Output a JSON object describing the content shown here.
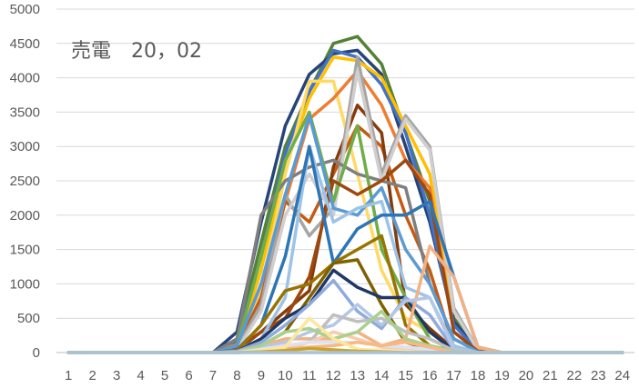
{
  "chart_data": {
    "type": "line",
    "title": "売電　20，02",
    "xlabel": "",
    "ylabel": "",
    "categories": [
      "1",
      "2",
      "3",
      "4",
      "5",
      "6",
      "7",
      "8",
      "9",
      "10",
      "11",
      "12",
      "13",
      "14",
      "15",
      "16",
      "17",
      "18",
      "19",
      "20",
      "21",
      "22",
      "23",
      "24"
    ],
    "ylim": [
      0,
      5000
    ],
    "yticks": [
      0,
      500,
      1000,
      1500,
      2000,
      2500,
      3000,
      3500,
      4000,
      4500,
      5000
    ],
    "grid": true,
    "legend": "none",
    "series": [
      {
        "color": "#548235",
        "values": [
          0,
          0,
          0,
          0,
          0,
          0,
          0,
          200,
          1600,
          3000,
          3800,
          4500,
          4600,
          4200,
          3200,
          2200,
          500,
          50,
          0,
          0,
          0,
          0,
          0,
          0
        ]
      },
      {
        "color": "#264478",
        "values": [
          0,
          0,
          0,
          0,
          0,
          0,
          0,
          300,
          1900,
          3300,
          4050,
          4350,
          4400,
          4050,
          3000,
          1900,
          450,
          40,
          0,
          0,
          0,
          0,
          0,
          0
        ]
      },
      {
        "color": "#4472C4",
        "values": [
          0,
          0,
          0,
          0,
          0,
          0,
          0,
          150,
          1400,
          2900,
          3800,
          4400,
          4300,
          3900,
          3200,
          2000,
          400,
          30,
          0,
          0,
          0,
          0,
          0,
          0
        ]
      },
      {
        "color": "#FFC000",
        "values": [
          0,
          0,
          0,
          0,
          0,
          0,
          0,
          100,
          1200,
          2700,
          3700,
          4300,
          4250,
          4000,
          3300,
          2600,
          600,
          60,
          0,
          0,
          0,
          0,
          0,
          0
        ]
      },
      {
        "color": "#FFD966",
        "values": [
          0,
          0,
          0,
          0,
          0,
          0,
          0,
          50,
          900,
          2600,
          3950,
          3950,
          2600,
          1200,
          500,
          300,
          50,
          0,
          0,
          0,
          0,
          0,
          0,
          0
        ]
      },
      {
        "color": "#ED7D31",
        "values": [
          0,
          0,
          0,
          0,
          0,
          0,
          0,
          120,
          1000,
          2200,
          3400,
          3700,
          4100,
          3600,
          2800,
          2400,
          300,
          20,
          0,
          0,
          0,
          0,
          0,
          0
        ]
      },
      {
        "color": "#C55A11",
        "values": [
          0,
          0,
          0,
          0,
          0,
          0,
          0,
          80,
          800,
          2200,
          1900,
          2600,
          3300,
          3000,
          2000,
          1200,
          80,
          0,
          0,
          0,
          0,
          0,
          0,
          0
        ]
      },
      {
        "color": "#843C0C",
        "values": [
          0,
          0,
          0,
          0,
          0,
          0,
          0,
          30,
          300,
          600,
          900,
          2700,
          3600,
          3200,
          700,
          350,
          50,
          0,
          0,
          0,
          0,
          0,
          0,
          0
        ]
      },
      {
        "color": "#A5A5A5",
        "values": [
          0,
          0,
          0,
          0,
          0,
          0,
          0,
          60,
          700,
          2300,
          1700,
          2100,
          4300,
          2600,
          3450,
          3000,
          650,
          40,
          0,
          0,
          0,
          0,
          0,
          0
        ]
      },
      {
        "color": "#D0CECE",
        "values": [
          0,
          0,
          0,
          0,
          0,
          0,
          0,
          40,
          600,
          2000,
          2600,
          2000,
          4100,
          2500,
          3400,
          2950,
          600,
          40,
          0,
          0,
          0,
          0,
          0,
          0
        ]
      },
      {
        "color": "#7F7F7F",
        "values": [
          0,
          0,
          0,
          0,
          0,
          0,
          0,
          200,
          2000,
          2500,
          2700,
          2800,
          2600,
          2500,
          2400,
          1000,
          200,
          20,
          0,
          0,
          0,
          0,
          0,
          0
        ]
      },
      {
        "color": "#70AD47",
        "values": [
          0,
          0,
          0,
          0,
          0,
          0,
          0,
          100,
          1400,
          2800,
          3500,
          2200,
          3300,
          1500,
          800,
          200,
          30,
          0,
          0,
          0,
          0,
          0,
          0,
          0
        ]
      },
      {
        "color": "#9E480E",
        "values": [
          0,
          0,
          0,
          0,
          0,
          0,
          0,
          50,
          300,
          500,
          1100,
          2500,
          2300,
          2500,
          2800,
          2300,
          300,
          20,
          0,
          0,
          0,
          0,
          0,
          0
        ]
      },
      {
        "color": "#5B9BD5",
        "values": [
          0,
          0,
          0,
          0,
          0,
          0,
          0,
          100,
          1000,
          2300,
          3450,
          2100,
          2000,
          2400,
          1500,
          1000,
          200,
          10,
          0,
          0,
          0,
          0,
          0,
          0
        ]
      },
      {
        "color": "#9DC3E6",
        "values": [
          0,
          0,
          0,
          0,
          0,
          0,
          0,
          30,
          200,
          800,
          3000,
          1900,
          2100,
          2200,
          950,
          800,
          100,
          0,
          0,
          0,
          0,
          0,
          0,
          0
        ]
      },
      {
        "color": "#2E75B6",
        "values": [
          0,
          0,
          0,
          0,
          0,
          0,
          0,
          40,
          400,
          1400,
          3000,
          1300,
          1800,
          2000,
          2000,
          2200,
          1100,
          80,
          0,
          0,
          0,
          0,
          0,
          0
        ]
      },
      {
        "color": "#997300",
        "values": [
          0,
          0,
          0,
          0,
          0,
          0,
          0,
          30,
          400,
          900,
          1000,
          1300,
          1500,
          1700,
          400,
          100,
          20,
          0,
          0,
          0,
          0,
          0,
          0,
          0
        ]
      },
      {
        "color": "#7F6000",
        "values": [
          0,
          0,
          0,
          0,
          0,
          0,
          0,
          20,
          100,
          300,
          800,
          1300,
          1350,
          700,
          150,
          50,
          0,
          0,
          0,
          0,
          0,
          0,
          0,
          0
        ]
      },
      {
        "color": "#1F3864",
        "values": [
          0,
          0,
          0,
          0,
          0,
          0,
          0,
          20,
          200,
          500,
          700,
          1200,
          950,
          800,
          800,
          300,
          30,
          0,
          0,
          0,
          0,
          0,
          0,
          0
        ]
      },
      {
        "color": "#8FAADC",
        "values": [
          0,
          0,
          0,
          0,
          0,
          0,
          0,
          20,
          150,
          400,
          700,
          1050,
          600,
          350,
          800,
          550,
          50,
          0,
          0,
          0,
          0,
          0,
          0,
          0
        ]
      },
      {
        "color": "#F4B183",
        "values": [
          0,
          0,
          0,
          0,
          0,
          0,
          0,
          10,
          100,
          200,
          200,
          200,
          300,
          100,
          200,
          1550,
          1100,
          80,
          0,
          0,
          0,
          0,
          0,
          0
        ]
      },
      {
        "color": "#B4C7E7",
        "values": [
          0,
          0,
          0,
          0,
          0,
          0,
          0,
          10,
          80,
          150,
          300,
          400,
          700,
          400,
          750,
          800,
          50,
          0,
          0,
          0,
          0,
          0,
          0,
          0
        ]
      },
      {
        "color": "#BFBFBF",
        "values": [
          0,
          0,
          0,
          0,
          0,
          0,
          0,
          10,
          50,
          100,
          150,
          550,
          450,
          500,
          300,
          200,
          30,
          0,
          0,
          0,
          0,
          0,
          0,
          0
        ]
      },
      {
        "color": "#F8CBAD",
        "values": [
          0,
          0,
          0,
          0,
          0,
          0,
          0,
          0,
          30,
          50,
          150,
          300,
          200,
          80,
          50,
          30,
          0,
          0,
          0,
          0,
          0,
          0,
          0,
          0
        ]
      },
      {
        "color": "#A9D18E",
        "values": [
          0,
          0,
          0,
          0,
          0,
          0,
          0,
          0,
          100,
          300,
          350,
          200,
          300,
          600,
          200,
          100,
          10,
          0,
          0,
          0,
          0,
          0,
          0,
          0
        ]
      },
      {
        "color": "#DAE3F3",
        "values": [
          0,
          0,
          0,
          0,
          0,
          0,
          0,
          0,
          50,
          100,
          150,
          150,
          150,
          100,
          80,
          50,
          0,
          0,
          0,
          0,
          0,
          0,
          0,
          0
        ]
      },
      {
        "color": "#F7B885",
        "values": [
          0,
          0,
          0,
          0,
          0,
          0,
          0,
          0,
          20,
          50,
          80,
          100,
          150,
          100,
          150,
          80,
          0,
          0,
          0,
          0,
          0,
          0,
          0,
          0
        ]
      },
      {
        "color": "#FFE699",
        "values": [
          0,
          0,
          0,
          0,
          0,
          0,
          0,
          0,
          30,
          80,
          500,
          200,
          50,
          30,
          20,
          0,
          0,
          0,
          0,
          0,
          0,
          0,
          0,
          0
        ]
      },
      {
        "color": "#C9A227",
        "values": [
          0,
          0,
          0,
          0,
          0,
          0,
          0,
          0,
          10,
          30,
          60,
          40,
          20,
          10,
          0,
          0,
          0,
          0,
          0,
          0,
          0,
          0,
          0,
          0
        ]
      },
      {
        "color": "#9DC3E6",
        "values": [
          0,
          0,
          0,
          0,
          0,
          0,
          0,
          0,
          0,
          0,
          0,
          0,
          0,
          0,
          0,
          0,
          0,
          0,
          0,
          0,
          0,
          0,
          0,
          0
        ]
      }
    ]
  }
}
